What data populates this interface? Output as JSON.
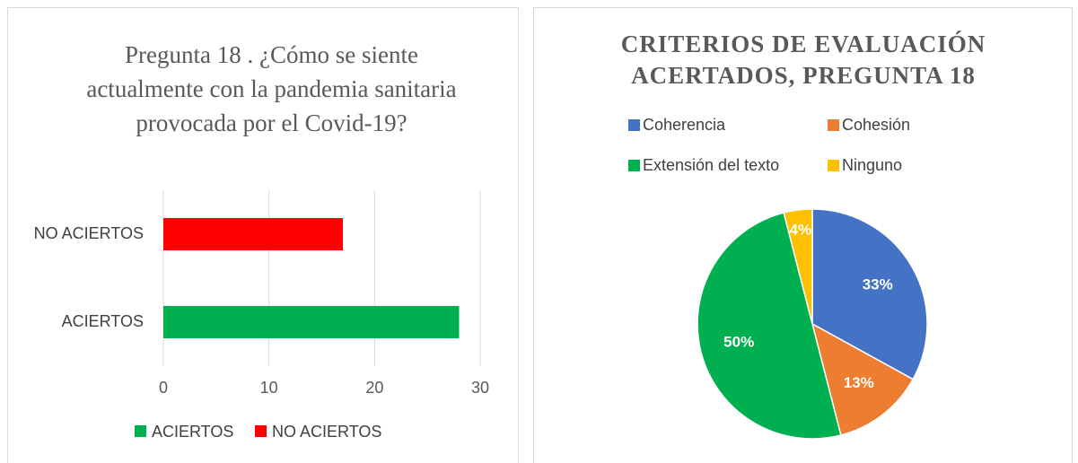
{
  "chart_data": [
    {
      "type": "hbar",
      "title": "Pregunta 18 . ¿Cómo se siente actualmente con la pandemia sanitaria provocada por el Covid-19?",
      "categories": [
        "ACIERTOS",
        "NO ACIERTOS"
      ],
      "values": [
        28,
        17
      ],
      "colors": [
        "#00b050",
        "#ff0000"
      ],
      "xlim": [
        0,
        30
      ],
      "xticks": [
        0,
        10,
        20,
        30
      ],
      "grid": true,
      "legend": "bottom"
    },
    {
      "type": "pie",
      "title": "CRITERIOS DE EVALUACIÓN ACERTADOS, PREGUNTA 18",
      "categories": [
        "Coherencia",
        "Cohesión",
        "Extensión del texto",
        "Ninguno"
      ],
      "values": [
        33,
        13,
        50,
        4
      ],
      "value_labels": [
        "33%",
        "13%",
        "50%",
        "4%"
      ],
      "colors": [
        "#4472c4",
        "#ed7d31",
        "#00b050",
        "#ffc000"
      ],
      "legend": "top"
    }
  ]
}
